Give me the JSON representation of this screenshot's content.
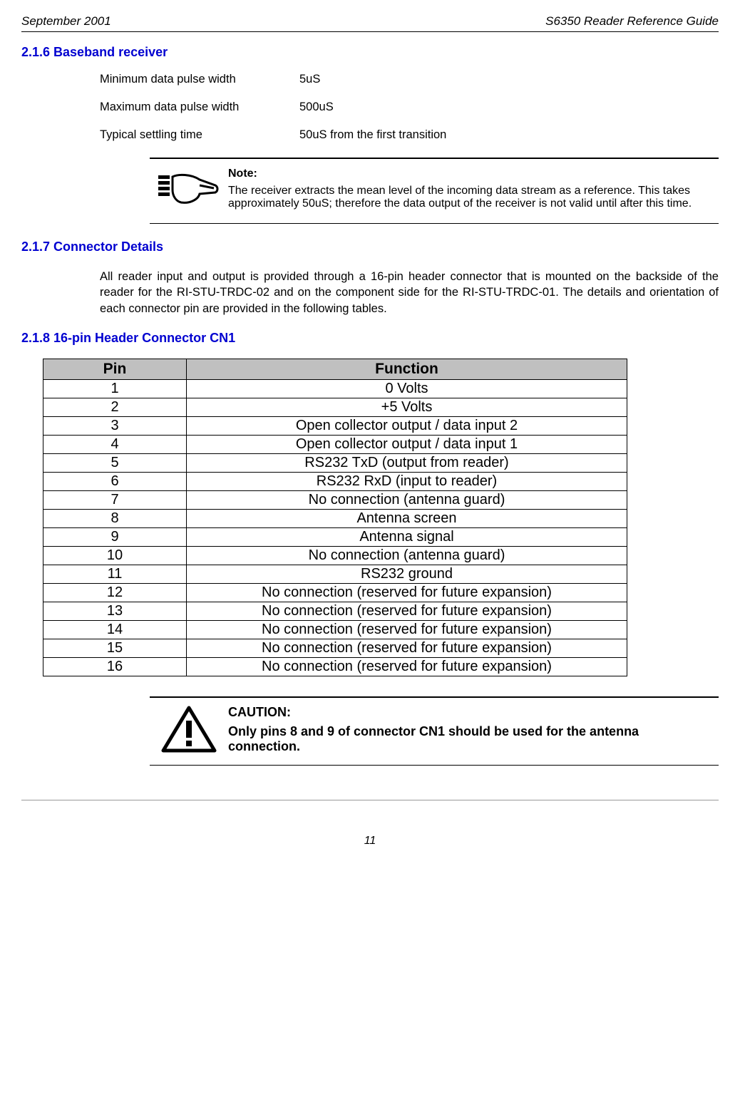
{
  "header": {
    "left": "September 2001",
    "right": "S6350 Reader Reference Guide"
  },
  "section216": {
    "heading": "2.1.6  Baseband receiver",
    "specs": [
      {
        "label": "Minimum data pulse width",
        "value": "5uS"
      },
      {
        "label": "Maximum data pulse width",
        "value": "500uS"
      },
      {
        "label": "Typical settling time",
        "value": "50uS from the first transition"
      }
    ],
    "note": {
      "title": "Note:",
      "body": "The receiver extracts the mean level of the incoming data stream as a reference. This takes approximately 50uS; therefore the data output of the receiver is not valid until after this time."
    }
  },
  "section217": {
    "heading": "2.1.7  Connector Details",
    "paragraph": "All reader input and output is provided through a 16-pin header connector that is mounted on the backside of the reader for the RI-STU-TRDC-02 and on the component side for the RI-STU-TRDC-01.  The details and orientation of each connector pin are provided in the following tables."
  },
  "section218": {
    "heading": "2.1.8  16-pin Header Connector CN1",
    "table": {
      "columns": [
        "Pin",
        "Function"
      ],
      "rows": [
        [
          "1",
          "0 Volts"
        ],
        [
          "2",
          "+5 Volts"
        ],
        [
          "3",
          "Open collector output / data input 2"
        ],
        [
          "4",
          "Open collector output / data input 1"
        ],
        [
          "5",
          "RS232 TxD   (output from reader)"
        ],
        [
          "6",
          "RS232 RxD   (input to reader)"
        ],
        [
          "7",
          "No connection (antenna guard)"
        ],
        [
          "8",
          "Antenna screen"
        ],
        [
          "9",
          "Antenna signal"
        ],
        [
          "10",
          "No connection (antenna guard)"
        ],
        [
          "11",
          "RS232 ground"
        ],
        [
          "12",
          "No connection (reserved for future expansion)"
        ],
        [
          "13",
          "No connection (reserved for future expansion)"
        ],
        [
          "14",
          "No connection (reserved for future expansion)"
        ],
        [
          "15",
          "No connection (reserved for future expansion)"
        ],
        [
          "16",
          "No connection (reserved for future expansion)"
        ]
      ]
    },
    "caution": {
      "title": "CAUTION:",
      "body": "Only pins 8 and 9 of connector CN1 should be used for the antenna connection."
    }
  },
  "pageNumber": "11"
}
